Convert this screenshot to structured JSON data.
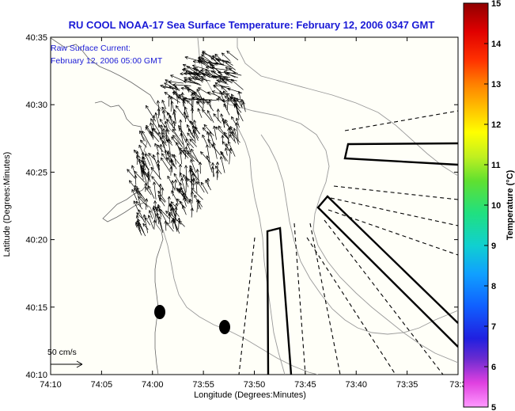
{
  "title": "RU COOL  NOAA-17  Sea Surface Temperature:  February 12, 2006 0347 GMT",
  "annotation": {
    "line1": "Raw Surface Current:",
    "line2": "February 12, 2006 05:00 GMT"
  },
  "scale_label": "50 cm/s",
  "axes": {
    "xlabel": "Longitude (Degrees:Minutes)",
    "ylabel": "Latitude (Degrees:Minutes)",
    "xticks": [
      "74:10",
      "74:05",
      "74:00",
      "73:55",
      "73:50",
      "73:45",
      "73:40",
      "73:35",
      "73:3"
    ],
    "yticks": [
      "40:35",
      "40:30",
      "40:25",
      "40:20",
      "40:15",
      "40:10"
    ]
  },
  "colorbar": {
    "label": "Temperature (°C)",
    "ticks": [
      "15",
      "14",
      "13",
      "12",
      "11",
      "10",
      "9",
      "8",
      "7",
      "6",
      "5"
    ],
    "range": [
      5,
      15
    ]
  },
  "chart_data": {
    "type": "map",
    "title": "RU COOL  NOAA-17  Sea Surface Temperature:  February 12, 2006 0347 GMT",
    "xlabel": "Longitude (Degrees:Minutes)",
    "ylabel": "Latitude (Degrees:Minutes)",
    "xlim": [
      "74:10",
      "73:30"
    ],
    "ylim": [
      "40:10",
      "40:35"
    ],
    "colorbar_range": [
      5,
      15
    ],
    "markers": [
      {
        "type": "filled-circle",
        "lon": "73:59",
        "lat": "40:14.7"
      },
      {
        "type": "filled-circle",
        "lon": "73:52.5",
        "lat": "40:13.5"
      }
    ]
  }
}
